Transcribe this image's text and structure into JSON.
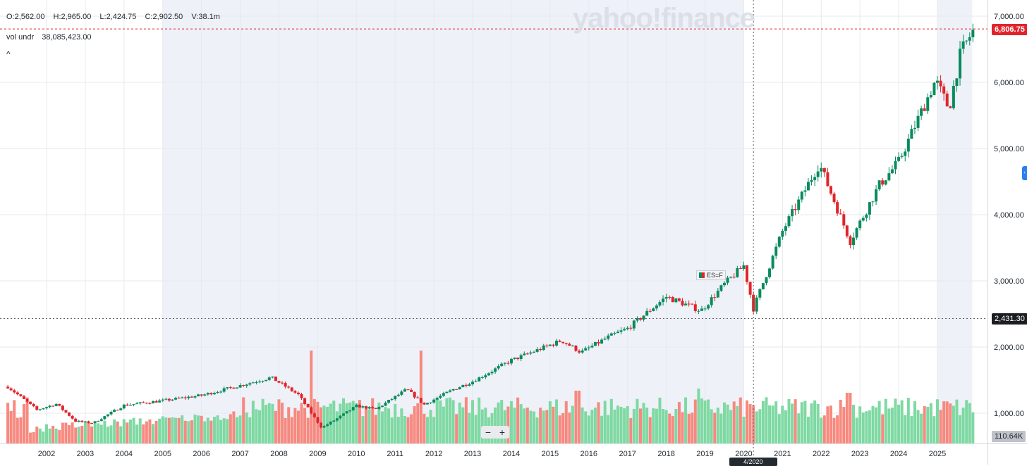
{
  "ohlc": {
    "open": "O:2,562.00",
    "high": "H:2,965.00",
    "low": "L:2,424.75",
    "close": "C:2,902.50",
    "volume": "V:38.1m"
  },
  "volume_indicator": {
    "label": "vol undr",
    "value": "38,085,423.00"
  },
  "collapse_icon": "^",
  "watermark": "yahoo!finance",
  "last_price": "6,806.75",
  "crosshair_price": "2,431.30",
  "crosshair_date": "4/2020",
  "volume_axis_label": "110.64K",
  "series_tag": "ES=F",
  "zoom": {
    "minus": "−",
    "plus": "+"
  },
  "side_tab_icon": "‹",
  "colors": {
    "up": "#098b5d",
    "down": "#e0252a",
    "vol_up": "#7ed9a2",
    "vol_down": "#f7897f",
    "shade": "#eef1f8"
  },
  "chart_data": {
    "type": "candlestick",
    "symbol": "ES=F",
    "y_ticks": [
      1000,
      2000,
      3000,
      4000,
      5000,
      6000,
      7000
    ],
    "y_tick_labels": [
      "1,000.00",
      "2,000.00",
      "3,000.00",
      "4,000.00",
      "5,000.00",
      "6,000.00",
      "7,000.00"
    ],
    "x_tick_labels": [
      "2002",
      "2003",
      "2004",
      "2005",
      "2006",
      "2007",
      "2008",
      "2009",
      "2010",
      "2011",
      "2012",
      "2013",
      "2014",
      "2015",
      "2016",
      "2017",
      "2018",
      "2019",
      "2020",
      "2021",
      "2022",
      "2023",
      "2024",
      "2025"
    ],
    "x_tick_years": [
      2002,
      2003,
      2004,
      2005,
      2006,
      2007,
      2008,
      2009,
      2010,
      2011,
      2012,
      2013,
      2014,
      2015,
      2016,
      2017,
      2018,
      2019,
      2020,
      2021,
      2022,
      2023,
      2024,
      2025
    ],
    "x_range": [
      2001.0,
      2026.08
    ],
    "y_range": [
      600,
      7100
    ],
    "shaded_ranges": [
      [
        2005.0,
        2020.0
      ],
      [
        2025.0,
        2025.9
      ]
    ],
    "crosshair": {
      "x": 2020.25,
      "y": 2431.3
    },
    "last_price": 6806.75,
    "monthly_close_anchors": [
      [
        2001.0,
        1400
      ],
      [
        2001.75,
        1050
      ],
      [
        2002.25,
        1140
      ],
      [
        2002.75,
        880
      ],
      [
        2003.2,
        850
      ],
      [
        2004.0,
        1120
      ],
      [
        2005.0,
        1190
      ],
      [
        2006.0,
        1270
      ],
      [
        2007.0,
        1420
      ],
      [
        2007.8,
        1540
      ],
      [
        2008.5,
        1280
      ],
      [
        2009.1,
        780
      ],
      [
        2009.5,
        920
      ],
      [
        2010.0,
        1110
      ],
      [
        2010.5,
        1060
      ],
      [
        2011.3,
        1360
      ],
      [
        2011.75,
        1130
      ],
      [
        2012.5,
        1360
      ],
      [
        2013.0,
        1480
      ],
      [
        2014.0,
        1800
      ],
      [
        2015.3,
        2100
      ],
      [
        2015.8,
        1920
      ],
      [
        2016.5,
        2150
      ],
      [
        2017.0,
        2280
      ],
      [
        2018.0,
        2760
      ],
      [
        2018.9,
        2550
      ],
      [
        2019.5,
        2950
      ],
      [
        2020.0,
        3230
      ],
      [
        2020.25,
        2580
      ],
      [
        2021.0,
        3750
      ],
      [
        2021.95,
        4770
      ],
      [
        2022.75,
        3600
      ],
      [
        2023.5,
        4450
      ],
      [
        2024.0,
        4800
      ],
      [
        2024.95,
        6030
      ],
      [
        2025.3,
        5600
      ],
      [
        2025.6,
        6450
      ],
      [
        2025.95,
        6806.75
      ]
    ],
    "volume_spikes": [
      [
        2008.8,
        1600
      ],
      [
        2011.65,
        1600
      ],
      [
        2015.7,
        650
      ],
      [
        2018.8,
        700
      ],
      [
        2022.7,
        600
      ]
    ]
  }
}
